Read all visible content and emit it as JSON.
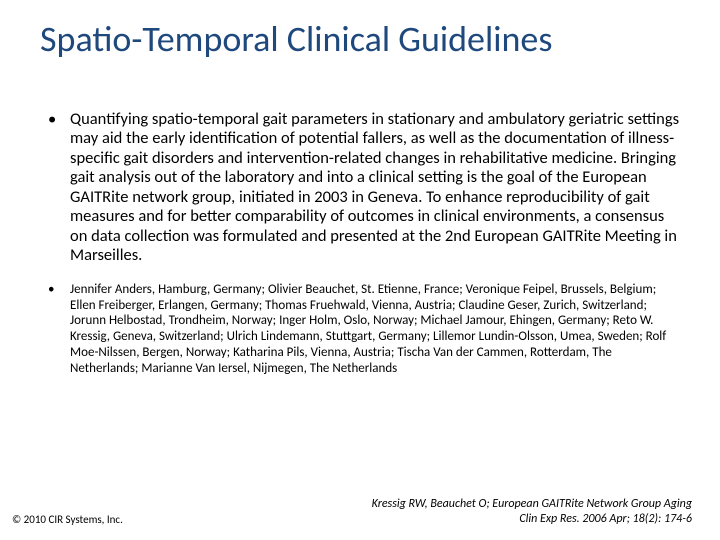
{
  "title": "Spatio-Temporal Clinical Guidelines",
  "bullets": {
    "main": "Quantifying spatio-temporal gait parameters in stationary and ambulatory geriatric settings may aid the early identification of potential fallers, as well as the documentation of illness-specific gait disorders and intervention-related changes in rehabilitative medicine. Bringing gait analysis out of the laboratory and into a clinical setting is the goal of the European GAITRite network group, initiated in 2003 in Geneva. To enhance reproducibility of gait measures and for better comparability of outcomes in clinical environments, a consensus on data collection was formulated and presented at the 2nd European GAITRite Meeting in Marseilles.",
    "authors": "Jennifer Anders, Hamburg, Germany; Olivier Beauchet, St. Etienne, France; Veronique Feipel, Brussels, Belgium; Ellen Freiberger, Erlangen, Germany; Thomas Fruehwald, Vienna, Austria; Claudine Geser, Zurich, Switzerland; Jorunn Helbostad, Trondheim, Norway; Inger Holm, Oslo, Norway; Michael Jamour, Ehingen, Germany; Reto W. Kressig, Geneva, Switzerland; Ulrich Lindemann, Stuttgart, Germany; Lillemor Lundin-Olsson, Umea, Sweden; Rolf Moe-Nilssen, Bergen, Norway; Katharina Pils, Vienna, Austria; Tischa Van der Cammen, Rotterdam, The Netherlands; Marianne Van Iersel, Nijmegen, The Netherlands"
  },
  "copyright": "© 2010 CIR Systems, Inc.",
  "citation": "Kressig RW, Beauchet O; European GAITRite Network Group Aging Clin Exp Res. 2006 Apr; 18(2): 174-6"
}
